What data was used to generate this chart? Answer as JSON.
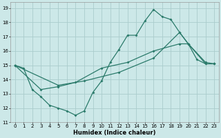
{
  "xlabel": "Humidex (Indice chaleur)",
  "xlim": [
    -0.5,
    23.5
  ],
  "ylim": [
    11,
    19.4
  ],
  "yticks": [
    11,
    12,
    13,
    14,
    15,
    16,
    17,
    18,
    19
  ],
  "xticks": [
    0,
    1,
    2,
    3,
    4,
    5,
    6,
    7,
    8,
    9,
    10,
    11,
    12,
    13,
    14,
    15,
    16,
    17,
    18,
    19,
    20,
    21,
    22,
    23
  ],
  "background_color": "#cce8e8",
  "grid_color": "#aacccc",
  "line_color": "#2a7a6a",
  "series1": [
    [
      0,
      15.0
    ],
    [
      1,
      14.8
    ],
    [
      2,
      13.3
    ],
    [
      3,
      12.8
    ],
    [
      4,
      12.2
    ],
    [
      5,
      12.0
    ],
    [
      6,
      11.8
    ],
    [
      7,
      11.5
    ],
    [
      8,
      11.8
    ],
    [
      9,
      13.1
    ],
    [
      10,
      13.9
    ],
    [
      11,
      15.2
    ],
    [
      12,
      16.1
    ],
    [
      13,
      17.1
    ],
    [
      14,
      17.1
    ],
    [
      15,
      18.1
    ],
    [
      16,
      18.9
    ],
    [
      17,
      18.4
    ],
    [
      18,
      18.2
    ],
    [
      19,
      17.3
    ],
    [
      20,
      16.5
    ],
    [
      21,
      15.4
    ],
    [
      22,
      15.1
    ],
    [
      23,
      15.1
    ]
  ],
  "series2": [
    [
      0,
      15.0
    ],
    [
      3,
      13.3
    ],
    [
      5,
      13.5
    ],
    [
      7,
      13.8
    ],
    [
      10,
      14.8
    ],
    [
      13,
      15.2
    ],
    [
      16,
      16.0
    ],
    [
      19,
      16.5
    ],
    [
      20,
      16.5
    ],
    [
      22,
      15.1
    ],
    [
      23,
      15.1
    ]
  ],
  "series3": [
    [
      0,
      15.0
    ],
    [
      5,
      13.6
    ],
    [
      8,
      13.9
    ],
    [
      12,
      14.5
    ],
    [
      16,
      15.5
    ],
    [
      19,
      17.3
    ],
    [
      20,
      16.5
    ],
    [
      22,
      15.2
    ],
    [
      23,
      15.1
    ]
  ]
}
